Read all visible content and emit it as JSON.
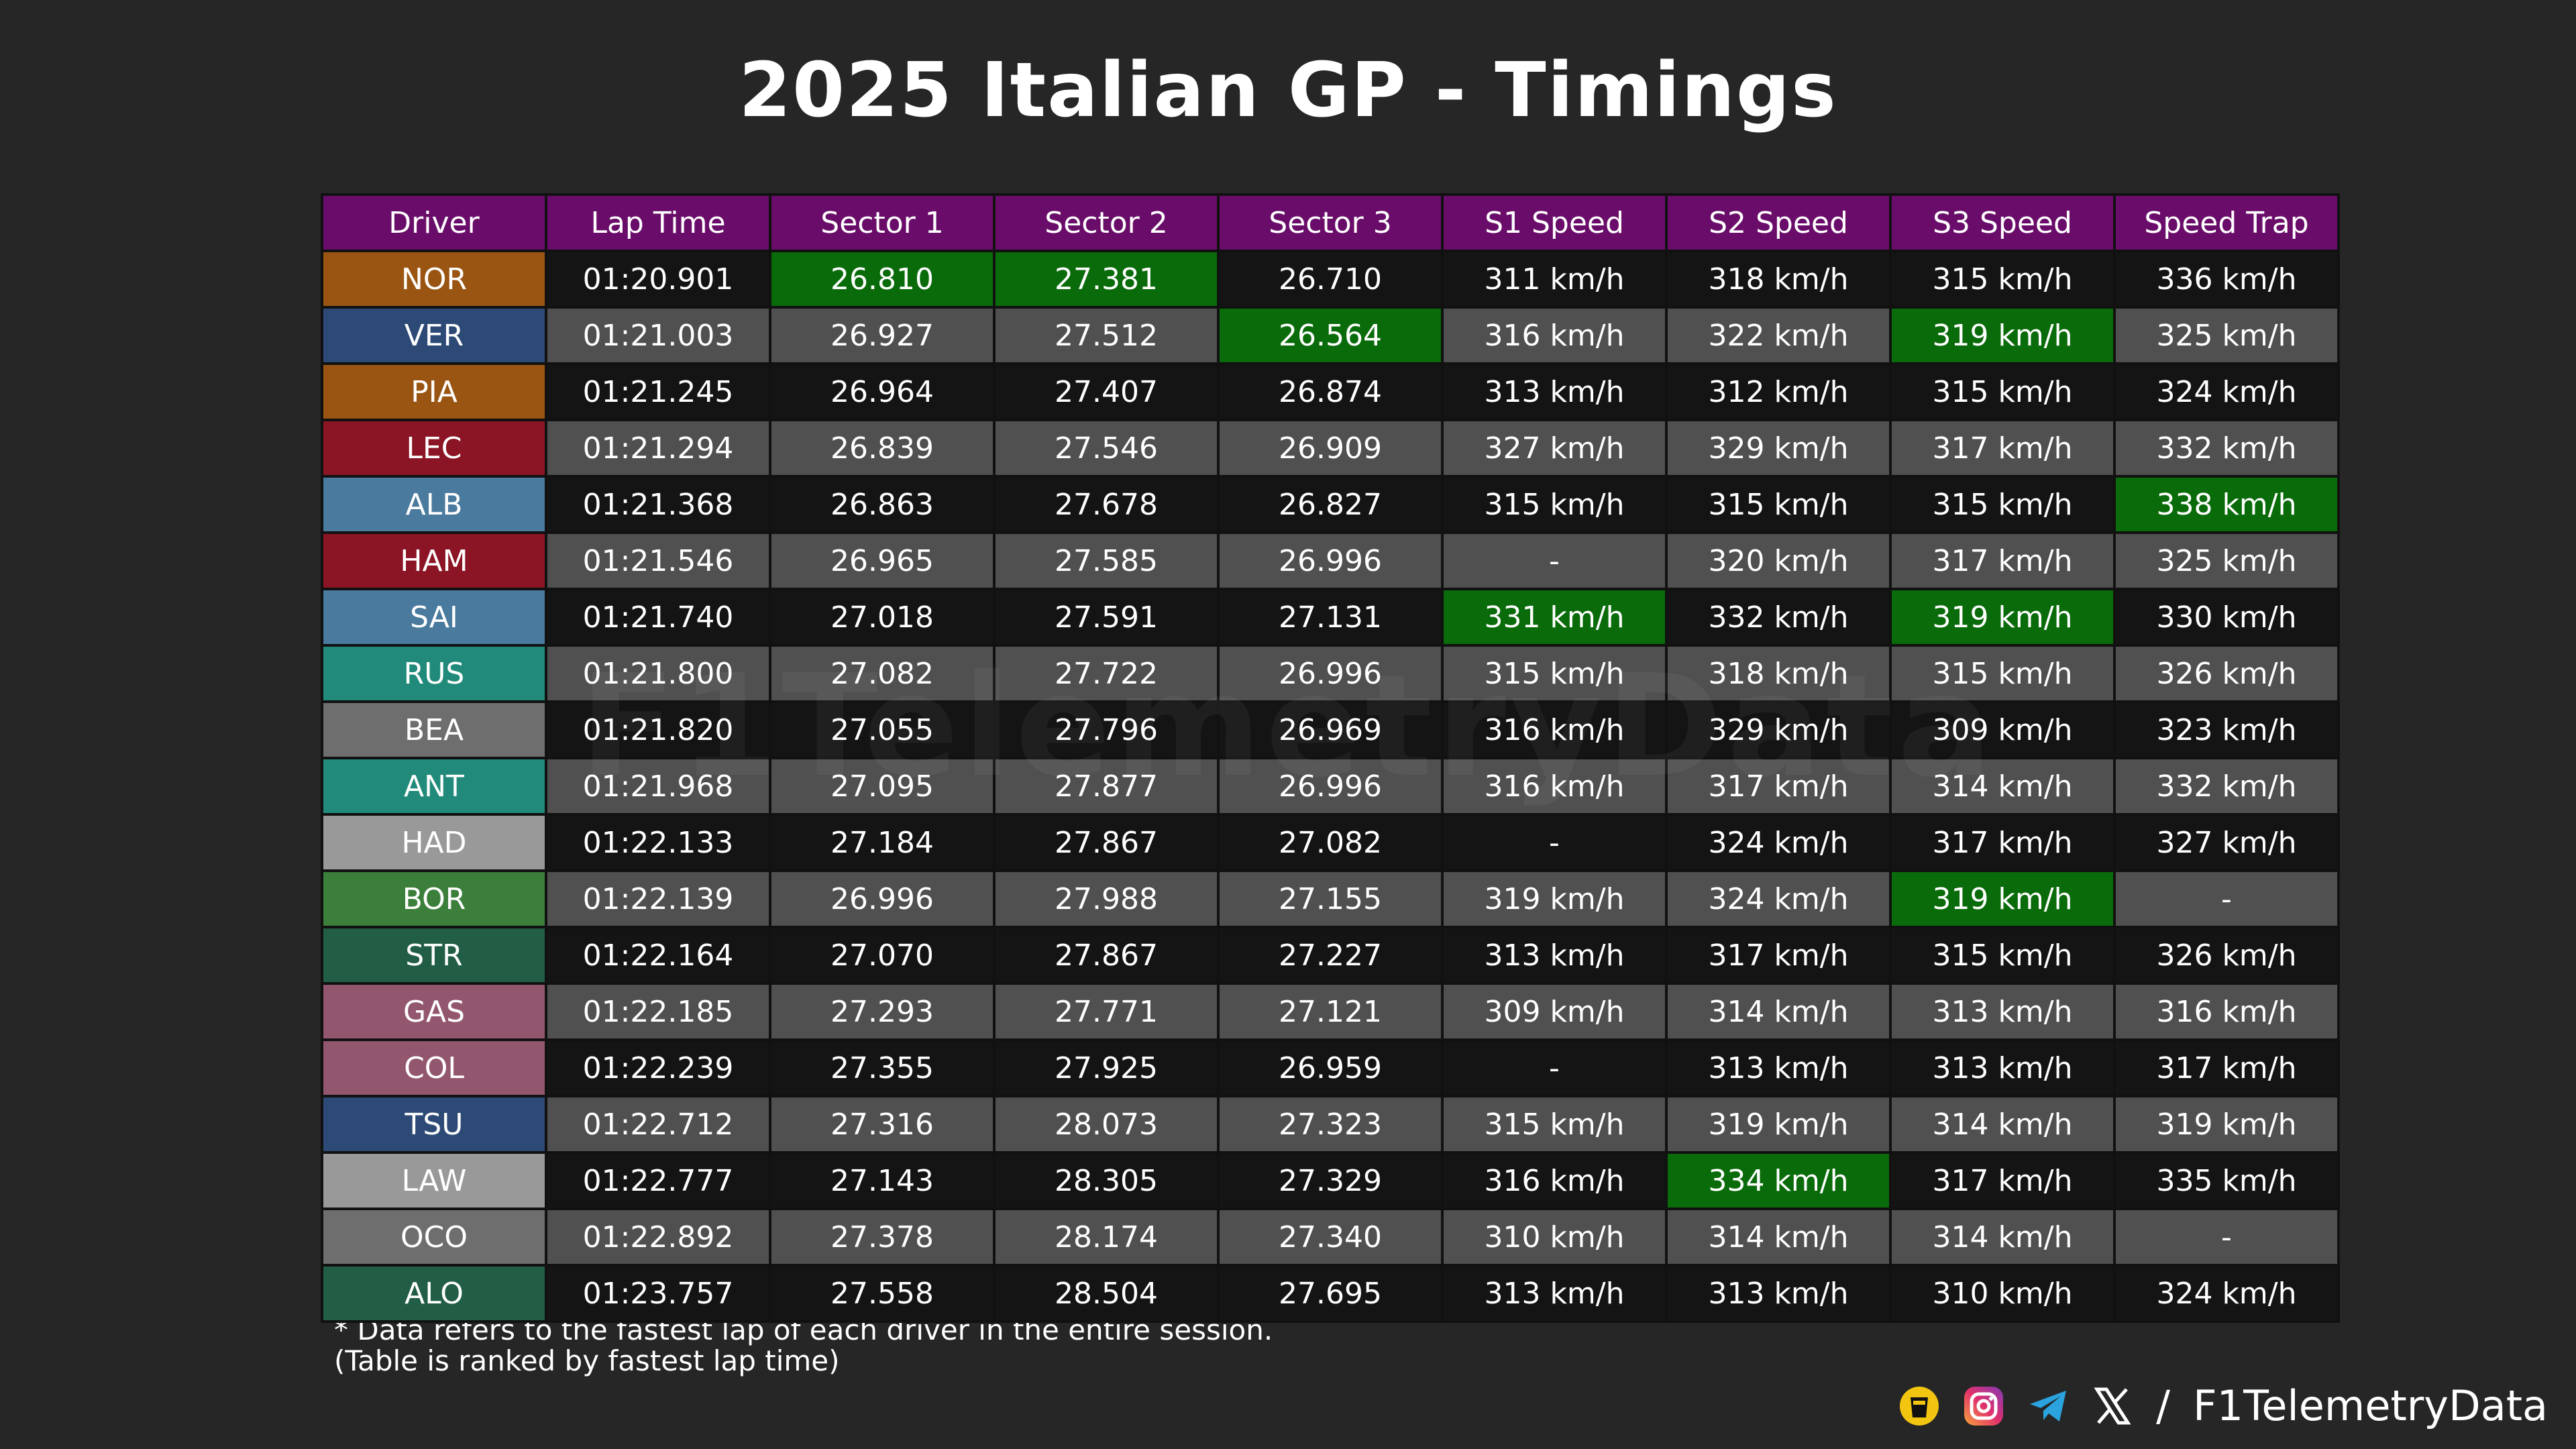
{
  "title": "2025 Italian GP - Timings",
  "watermark": "F1TelemetryData",
  "footnote_line1": "* Data refers to the fastest lap of each driver in the entire session.",
  "footnote_line2": "(Table is ranked by fastest lap time)",
  "footer": {
    "separator": "/",
    "handle": "F1TelemetryData",
    "icons": [
      "beer-cup-icon",
      "instagram-icon",
      "telegram-icon",
      "x-icon"
    ]
  },
  "colors": {
    "header": "#6a0d6a",
    "best": "#0a6b0a",
    "row_dark": "#141414",
    "row_light": "#505050"
  },
  "chart_data": {
    "type": "table",
    "title": "2025 Italian GP - Timings",
    "columns": [
      "Driver",
      "Lap Time",
      "Sector 1",
      "Sector 2",
      "Sector 3",
      "S1 Speed",
      "S2 Speed",
      "S3 Speed",
      "Speed Trap"
    ],
    "rows": [
      {
        "color": "#9a5512",
        "cells": [
          "NOR",
          "01:20.901",
          "26.810",
          "27.381",
          "26.710",
          "311 km/h",
          "318 km/h",
          "315 km/h",
          "336 km/h"
        ],
        "best": [
          2,
          3
        ]
      },
      {
        "color": "#2c4a75",
        "cells": [
          "VER",
          "01:21.003",
          "26.927",
          "27.512",
          "26.564",
          "316 km/h",
          "322 km/h",
          "319 km/h",
          "325 km/h"
        ],
        "best": [
          4,
          7
        ]
      },
      {
        "color": "#9a5512",
        "cells": [
          "PIA",
          "01:21.245",
          "26.964",
          "27.407",
          "26.874",
          "313 km/h",
          "312 km/h",
          "315 km/h",
          "324 km/h"
        ],
        "best": []
      },
      {
        "color": "#8b1525",
        "cells": [
          "LEC",
          "01:21.294",
          "26.839",
          "27.546",
          "26.909",
          "327 km/h",
          "329 km/h",
          "317 km/h",
          "332 km/h"
        ],
        "best": []
      },
      {
        "color": "#4a7a9e",
        "cells": [
          "ALB",
          "01:21.368",
          "26.863",
          "27.678",
          "26.827",
          "315 km/h",
          "315 km/h",
          "315 km/h",
          "338 km/h"
        ],
        "best": [
          8
        ]
      },
      {
        "color": "#8b1525",
        "cells": [
          "HAM",
          "01:21.546",
          "26.965",
          "27.585",
          "26.996",
          "-",
          "320 km/h",
          "317 km/h",
          "325 km/h"
        ],
        "best": []
      },
      {
        "color": "#4a7a9e",
        "cells": [
          "SAI",
          "01:21.740",
          "27.018",
          "27.591",
          "27.131",
          "331 km/h",
          "332 km/h",
          "319 km/h",
          "330 km/h"
        ],
        "best": [
          5,
          7
        ]
      },
      {
        "color": "#218a7a",
        "cells": [
          "RUS",
          "01:21.800",
          "27.082",
          "27.722",
          "26.996",
          "315 km/h",
          "318 km/h",
          "315 km/h",
          "326 km/h"
        ],
        "best": []
      },
      {
        "color": "#6e6e6e",
        "cells": [
          "BEA",
          "01:21.820",
          "27.055",
          "27.796",
          "26.969",
          "316 km/h",
          "329 km/h",
          "309 km/h",
          "323 km/h"
        ],
        "best": []
      },
      {
        "color": "#218a7a",
        "cells": [
          "ANT",
          "01:21.968",
          "27.095",
          "27.877",
          "26.996",
          "316 km/h",
          "317 km/h",
          "314 km/h",
          "332 km/h"
        ],
        "best": []
      },
      {
        "color": "#999999",
        "cells": [
          "HAD",
          "01:22.133",
          "27.184",
          "27.867",
          "27.082",
          "-",
          "324 km/h",
          "317 km/h",
          "327 km/h"
        ],
        "best": []
      },
      {
        "color": "#3b7f3b",
        "cells": [
          "BOR",
          "01:22.139",
          "26.996",
          "27.988",
          "27.155",
          "319 km/h",
          "324 km/h",
          "319 km/h",
          "-"
        ],
        "best": [
          7
        ]
      },
      {
        "color": "#225e45",
        "cells": [
          "STR",
          "01:22.164",
          "27.070",
          "27.867",
          "27.227",
          "313 km/h",
          "317 km/h",
          "315 km/h",
          "326 km/h"
        ],
        "best": []
      },
      {
        "color": "#93566f",
        "cells": [
          "GAS",
          "01:22.185",
          "27.293",
          "27.771",
          "27.121",
          "309 km/h",
          "314 km/h",
          "313 km/h",
          "316 km/h"
        ],
        "best": []
      },
      {
        "color": "#93566f",
        "cells": [
          "COL",
          "01:22.239",
          "27.355",
          "27.925",
          "26.959",
          "-",
          "313 km/h",
          "313 km/h",
          "317 km/h"
        ],
        "best": []
      },
      {
        "color": "#2c4a75",
        "cells": [
          "TSU",
          "01:22.712",
          "27.316",
          "28.073",
          "27.323",
          "315 km/h",
          "319 km/h",
          "314 km/h",
          "319 km/h"
        ],
        "best": []
      },
      {
        "color": "#999999",
        "cells": [
          "LAW",
          "01:22.777",
          "27.143",
          "28.305",
          "27.329",
          "316 km/h",
          "334 km/h",
          "317 km/h",
          "335 km/h"
        ],
        "best": [
          6
        ]
      },
      {
        "color": "#6e6e6e",
        "cells": [
          "OCO",
          "01:22.892",
          "27.378",
          "28.174",
          "27.340",
          "310 km/h",
          "314 km/h",
          "314 km/h",
          "-"
        ],
        "best": []
      },
      {
        "color": "#225e45",
        "cells": [
          "ALO",
          "01:23.757",
          "27.558",
          "28.504",
          "27.695",
          "313 km/h",
          "313 km/h",
          "310 km/h",
          "324 km/h"
        ],
        "best": []
      }
    ]
  }
}
